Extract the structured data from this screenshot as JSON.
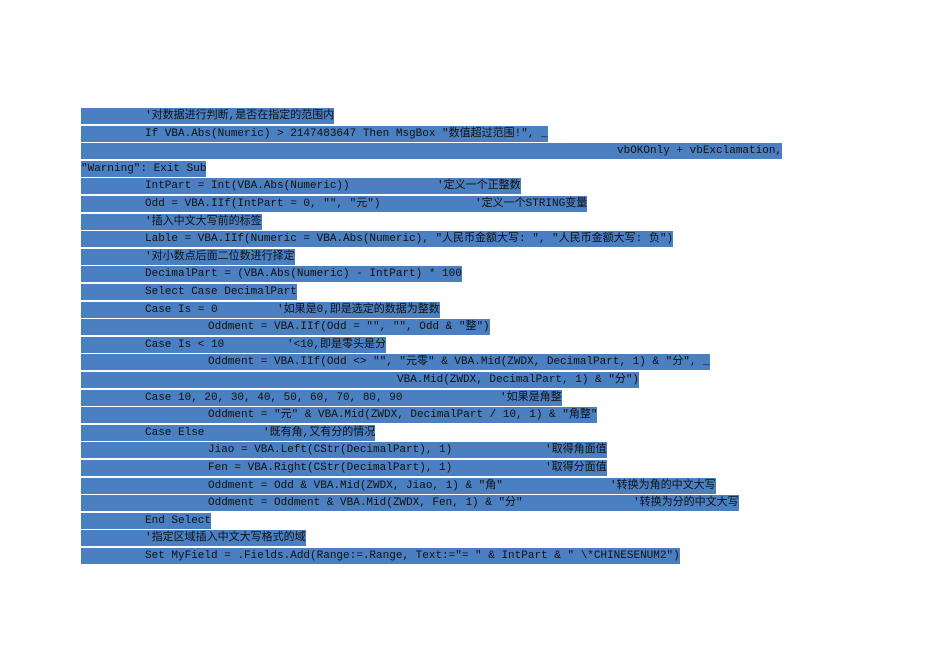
{
  "lines": [
    {
      "code": "'对数据进行判断,是否在指定的范围内"
    },
    {
      "code": "If VBA.Abs(Numeric) > 2147483647 Then MsgBox \"数值超过范围!\", _"
    },
    {
      "code": "vbOKOnly + vbExclamation,"
    },
    {
      "code": "\"Warning\": Exit Sub"
    },
    {
      "code": "IntPart = Int(VBA.Abs(Numeric))",
      "comment": "'定义一个正整数"
    },
    {
      "code": "Odd = VBA.IIf(IntPart = 0, \"\", \"元\")",
      "comment": "'定义一个STRING变量"
    },
    {
      "code": "'插入中文大写前的标签"
    },
    {
      "code": "Lable = VBA.IIf(Numeric = VBA.Abs(Numeric), \"人民币金额大写: \", \"人民币金额大写: 负\")"
    },
    {
      "code": "'对小数点后面二位数进行择定"
    },
    {
      "code": "DecimalPart = (VBA.Abs(Numeric) - IntPart) * 100"
    },
    {
      "code": "Select Case DecimalPart"
    },
    {
      "code": "Case Is = 0",
      "comment": "'如果是0,即是选定的数据为整数"
    },
    {
      "code": "Oddment = VBA.IIf(Odd = \"\", \"\", Odd & \"整\")"
    },
    {
      "code": "Case Is < 10",
      "comment": "'<10,即是零头是分"
    },
    {
      "code": "Oddment = VBA.IIf(Odd <> \"\", \"元零\" & VBA.Mid(ZWDX, DecimalPart, 1) & \"分\", _"
    },
    {
      "code": "VBA.Mid(ZWDX, DecimalPart, 1) & \"分\")"
    },
    {
      "code": "Case 10, 20, 30, 40, 50, 60, 70, 80, 90",
      "comment": "'如果是角整"
    },
    {
      "code": "Oddment = \"元\" & VBA.Mid(ZWDX, DecimalPart / 10, 1) & \"角整\""
    },
    {
      "code": "Case Else",
      "comment": "'既有角,又有分的情况"
    },
    {
      "code": "Jiao = VBA.Left(CStr(DecimalPart), 1)",
      "comment": "'取得角面值"
    },
    {
      "code": "Fen = VBA.Right(CStr(DecimalPart), 1)",
      "comment": "'取得分面值"
    },
    {
      "code": "Oddment = Odd & VBA.Mid(ZWDX, Jiao, 1) & \"角\"",
      "comment": "'转换为角的中文大写"
    },
    {
      "code": "Oddment = Oddment & VBA.Mid(ZWDX, Fen, 1) & \"分\"",
      "comment": "'转换为分的中文大写"
    },
    {
      "code": "End Select"
    },
    {
      "code": "'指定区域插入中文大写格式的域"
    },
    {
      "code": "Set MyField = .Fields.Add(Range:=.Range, Text:=\"= \" & IntPart & \" \\*CHINESENUM2\")"
    }
  ]
}
